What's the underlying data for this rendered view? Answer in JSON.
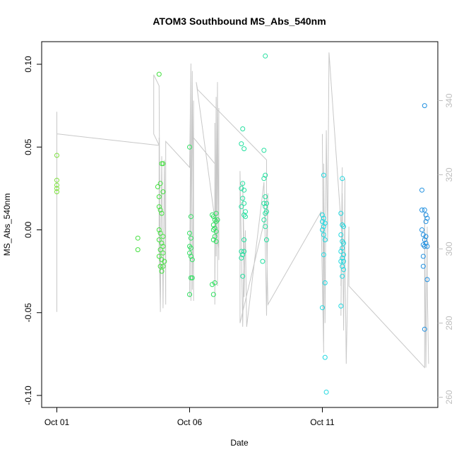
{
  "chart_data": {
    "type": "scatter",
    "title": "ATOM3 Southbound MS_Abs_540nm",
    "xlabel": "Date",
    "ylabel": "MS_Abs_540nm",
    "x_ticks": [
      "Oct 01",
      "Oct 06",
      "Oct 11"
    ],
    "x_tick_days": [
      1,
      6,
      11
    ],
    "xlim": [
      1,
      15
    ],
    "ylim": [
      -0.1,
      0.105
    ],
    "y_ticks": [
      "0.10",
      "0.05",
      "0.00",
      "-0.05",
      "-0.10"
    ],
    "y_tick_values": [
      0.1,
      0.05,
      0.0,
      -0.05,
      -0.1
    ],
    "y2_ticks": [
      "340",
      "320",
      "300",
      "280",
      "260"
    ],
    "y2_tick_values": [
      340,
      320,
      300,
      280,
      260
    ],
    "y2lim": [
      258,
      356
    ],
    "colors": {
      "line": "#c8c8c8",
      "axis": "#000000",
      "right_axis": "#bdbdbd"
    },
    "series": [
      {
        "color": "#7fe040",
        "points": [
          [
            1.0,
            0.045
          ],
          [
            1.0,
            0.03
          ],
          [
            1.0,
            0.027
          ],
          [
            1.0,
            0.025
          ],
          [
            1.0,
            0.023
          ]
        ]
      },
      {
        "color": "#44e040",
        "points": [
          [
            4.05,
            -0.005
          ],
          [
            4.05,
            -0.012
          ],
          [
            4.85,
            0.094
          ],
          [
            4.8,
            0.026
          ],
          [
            4.9,
            0.028
          ],
          [
            4.95,
            0.04
          ],
          [
            5.0,
            0.04
          ],
          [
            4.85,
            0.014
          ],
          [
            4.9,
            0.012
          ],
          [
            4.95,
            0.01
          ],
          [
            4.85,
            0.0
          ],
          [
            4.9,
            -0.002
          ],
          [
            5.0,
            -0.004
          ],
          [
            4.85,
            -0.006
          ],
          [
            4.95,
            -0.008
          ],
          [
            5.0,
            -0.01
          ],
          [
            4.9,
            -0.012
          ],
          [
            5.0,
            -0.014
          ],
          [
            4.85,
            -0.016
          ],
          [
            4.95,
            -0.018
          ],
          [
            4.9,
            -0.022
          ],
          [
            5.0,
            -0.022
          ],
          [
            4.95,
            -0.025
          ],
          [
            5.05,
            -0.019
          ],
          [
            4.85,
            0.02
          ],
          [
            5.0,
            0.023
          ]
        ]
      },
      {
        "color": "#2ee060",
        "points": [
          [
            6.0,
            0.05
          ],
          [
            6.05,
            0.008
          ],
          [
            6.0,
            -0.002
          ],
          [
            6.05,
            -0.005
          ],
          [
            6.0,
            -0.01
          ],
          [
            6.05,
            -0.011
          ],
          [
            6.0,
            -0.014
          ],
          [
            6.05,
            -0.016
          ],
          [
            6.1,
            -0.018
          ],
          [
            6.0,
            -0.039
          ],
          [
            6.05,
            -0.029
          ],
          [
            6.1,
            -0.029
          ],
          [
            6.9,
            0.008
          ],
          [
            7.0,
            0.01
          ],
          [
            6.95,
            0.006
          ],
          [
            7.0,
            0.005
          ],
          [
            6.9,
            0.003
          ],
          [
            6.95,
            0.001
          ],
          [
            7.0,
            -0.001
          ],
          [
            6.9,
            -0.006
          ],
          [
            6.95,
            -0.004
          ],
          [
            7.0,
            -0.007
          ],
          [
            6.85,
            -0.033
          ],
          [
            6.95,
            -0.032
          ],
          [
            6.9,
            -0.039
          ],
          [
            6.85,
            0.009
          ],
          [
            7.05,
            0.006
          ],
          [
            6.9,
            0.0
          ]
        ]
      },
      {
        "color": "#25e0a0",
        "points": [
          [
            8.0,
            0.061
          ],
          [
            7.95,
            0.052
          ],
          [
            8.05,
            0.049
          ],
          [
            8.0,
            0.028
          ],
          [
            7.95,
            0.025
          ],
          [
            8.05,
            0.024
          ],
          [
            8.0,
            0.019
          ],
          [
            8.05,
            0.016
          ],
          [
            7.95,
            0.014
          ],
          [
            8.1,
            0.011
          ],
          [
            8.05,
            0.009
          ],
          [
            8.1,
            0.008
          ],
          [
            8.05,
            -0.006
          ],
          [
            7.95,
            -0.013
          ],
          [
            8.05,
            -0.013
          ],
          [
            7.95,
            -0.017
          ],
          [
            8.0,
            -0.015
          ],
          [
            8.0,
            -0.028
          ],
          [
            8.85,
            0.105
          ],
          [
            8.8,
            0.048
          ],
          [
            8.85,
            0.033
          ],
          [
            8.8,
            0.031
          ],
          [
            8.85,
            0.02
          ],
          [
            8.9,
            0.016
          ],
          [
            8.8,
            0.016
          ],
          [
            8.85,
            0.014
          ],
          [
            8.9,
            0.011
          ],
          [
            8.85,
            0.01
          ],
          [
            8.8,
            0.006
          ],
          [
            8.85,
            0.002
          ],
          [
            8.9,
            -0.006
          ],
          [
            8.75,
            -0.019
          ]
        ]
      },
      {
        "color": "#20d8e0",
        "points": [
          [
            11.05,
            0.033
          ],
          [
            11.0,
            0.009
          ],
          [
            11.05,
            0.007
          ],
          [
            11.0,
            0.005
          ],
          [
            11.1,
            0.004
          ],
          [
            11.05,
            0.002
          ],
          [
            11.0,
            0.0
          ],
          [
            11.05,
            -0.003
          ],
          [
            11.1,
            -0.006
          ],
          [
            11.05,
            -0.015
          ],
          [
            11.1,
            -0.032
          ],
          [
            11.0,
            -0.047
          ],
          [
            11.1,
            -0.077
          ],
          [
            11.15,
            -0.098
          ],
          [
            11.75,
            0.031
          ],
          [
            11.7,
            0.01
          ],
          [
            11.75,
            0.003
          ],
          [
            11.8,
            0.002
          ],
          [
            11.7,
            -0.003
          ],
          [
            11.75,
            -0.007
          ],
          [
            11.8,
            -0.008
          ],
          [
            11.75,
            -0.011
          ],
          [
            11.7,
            -0.013
          ],
          [
            11.8,
            -0.015
          ],
          [
            11.75,
            -0.017
          ],
          [
            11.7,
            -0.019
          ],
          [
            11.8,
            -0.019
          ],
          [
            11.75,
            -0.022
          ],
          [
            11.8,
            -0.024
          ],
          [
            11.75,
            -0.028
          ],
          [
            11.7,
            -0.046
          ]
        ]
      },
      {
        "color": "#2090e0",
        "points": [
          [
            14.85,
            0.075
          ],
          [
            14.75,
            0.024
          ],
          [
            14.75,
            0.012
          ],
          [
            14.85,
            0.012
          ],
          [
            14.9,
            0.009
          ],
          [
            14.95,
            0.007
          ],
          [
            14.9,
            0.005
          ],
          [
            14.75,
            0.0
          ],
          [
            14.8,
            -0.003
          ],
          [
            14.9,
            -0.004
          ],
          [
            14.85,
            -0.006
          ],
          [
            14.8,
            -0.009
          ],
          [
            14.9,
            -0.008
          ],
          [
            14.85,
            -0.01
          ],
          [
            14.95,
            -0.01
          ],
          [
            14.8,
            -0.016
          ],
          [
            14.8,
            -0.022
          ],
          [
            14.95,
            -0.03
          ],
          [
            14.85,
            -0.06
          ]
        ]
      }
    ],
    "gray_line": [
      [
        1.0,
        283
      ],
      [
        1.0,
        337
      ],
      [
        1.0,
        331
      ],
      [
        1.0,
        333
      ],
      [
        1.0,
        337
      ],
      [
        1.0,
        332
      ],
      [
        1.0,
        331
      ],
      [
        1.05,
        331
      ],
      [
        4.75,
        328
      ],
      [
        4.85,
        328
      ],
      [
        4.65,
        331
      ],
      [
        4.65,
        347
      ],
      [
        4.85,
        344
      ],
      [
        4.9,
        284
      ],
      [
        4.85,
        300
      ],
      [
        4.85,
        330
      ],
      [
        4.9,
        283
      ],
      [
        4.95,
        325
      ],
      [
        5.0,
        284
      ],
      [
        5.05,
        324
      ],
      [
        5.1,
        285
      ],
      [
        5.1,
        329
      ],
      [
        6.0,
        322
      ],
      [
        6.05,
        350
      ],
      [
        6.0,
        287
      ],
      [
        6.05,
        349
      ],
      [
        6.0,
        289
      ],
      [
        6.1,
        348
      ],
      [
        6.05,
        286
      ],
      [
        6.1,
        347
      ],
      [
        6.1,
        345
      ],
      [
        6.15,
        286
      ],
      [
        6.15,
        340
      ],
      [
        6.1,
        289
      ],
      [
        6.15,
        330
      ],
      [
        6.95,
        323
      ],
      [
        6.95,
        300
      ],
      [
        6.95,
        334
      ],
      [
        6.95,
        285
      ],
      [
        7.0,
        341
      ],
      [
        7.0,
        298
      ],
      [
        7.05,
        345
      ],
      [
        7.05,
        290
      ],
      [
        7.05,
        340
      ],
      [
        7.1,
        297
      ],
      [
        7.1,
        338
      ],
      [
        7.1,
        300
      ],
      [
        6.25,
        345
      ],
      [
        6.3,
        343
      ],
      [
        8.9,
        324
      ],
      [
        8.9,
        310
      ],
      [
        7.9,
        280
      ],
      [
        7.9,
        305
      ],
      [
        7.9,
        321
      ],
      [
        8.0,
        279
      ],
      [
        8.05,
        300
      ],
      [
        8.0,
        318
      ],
      [
        8.05,
        287
      ],
      [
        8.1,
        305
      ],
      [
        8.15,
        279
      ],
      [
        8.8,
        318
      ],
      [
        8.85,
        301
      ],
      [
        8.9,
        282
      ],
      [
        8.95,
        315
      ],
      [
        8.9,
        303
      ],
      [
        8.95,
        285
      ],
      [
        10.95,
        310
      ],
      [
        11.05,
        272
      ],
      [
        11.0,
        331
      ],
      [
        11.05,
        275
      ],
      [
        11.05,
        323
      ],
      [
        11.1,
        280
      ],
      [
        11.15,
        332
      ],
      [
        11.2,
        302
      ],
      [
        11.25,
        353
      ],
      [
        11.75,
        302
      ],
      [
        11.7,
        290
      ],
      [
        11.75,
        322
      ],
      [
        11.7,
        282
      ],
      [
        11.75,
        315
      ],
      [
        11.8,
        278
      ],
      [
        11.85,
        319
      ],
      [
        11.85,
        300
      ],
      [
        11.9,
        269
      ],
      [
        12.0,
        306
      ],
      [
        12.0,
        290
      ],
      [
        14.85,
        268
      ],
      [
        14.85,
        294
      ],
      [
        14.85,
        310
      ],
      [
        14.9,
        268
      ],
      [
        14.95,
        306
      ],
      [
        14.95,
        290
      ],
      [
        15.0,
        269
      ]
    ]
  }
}
